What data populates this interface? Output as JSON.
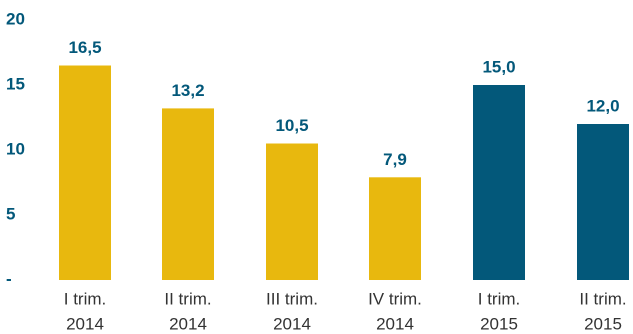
{
  "colors": {
    "series_2014": "#E8B80E",
    "series_2015": "#03587A",
    "label_text": "#03587A",
    "category_text": "#333333"
  },
  "chart_data": {
    "type": "bar",
    "categories": [
      [
        "I trim.",
        "2014"
      ],
      [
        "II trim.",
        "2014"
      ],
      [
        "III trim.",
        "2014"
      ],
      [
        "IV trim.",
        "2014"
      ],
      [
        "I trim.",
        "2015"
      ],
      [
        "II trim.",
        "2015"
      ]
    ],
    "values": [
      16.5,
      13.2,
      10.5,
      7.9,
      15.0,
      12.0
    ],
    "data_labels": [
      "16,5",
      "13,2",
      "10,5",
      "7,9",
      "15,0",
      "12,0"
    ],
    "bar_colors": [
      "#E8B80E",
      "#E8B80E",
      "#E8B80E",
      "#E8B80E",
      "#03587A",
      "#03587A"
    ],
    "y_ticks": [
      {
        "value": 0,
        "label": "-"
      },
      {
        "value": 5,
        "label": "5"
      },
      {
        "value": 10,
        "label": "10"
      },
      {
        "value": 15,
        "label": "15"
      },
      {
        "value": 20,
        "label": "20"
      }
    ],
    "ylim": [
      0,
      20
    ],
    "grid": false,
    "title": "",
    "xlabel": "",
    "ylabel": ""
  }
}
